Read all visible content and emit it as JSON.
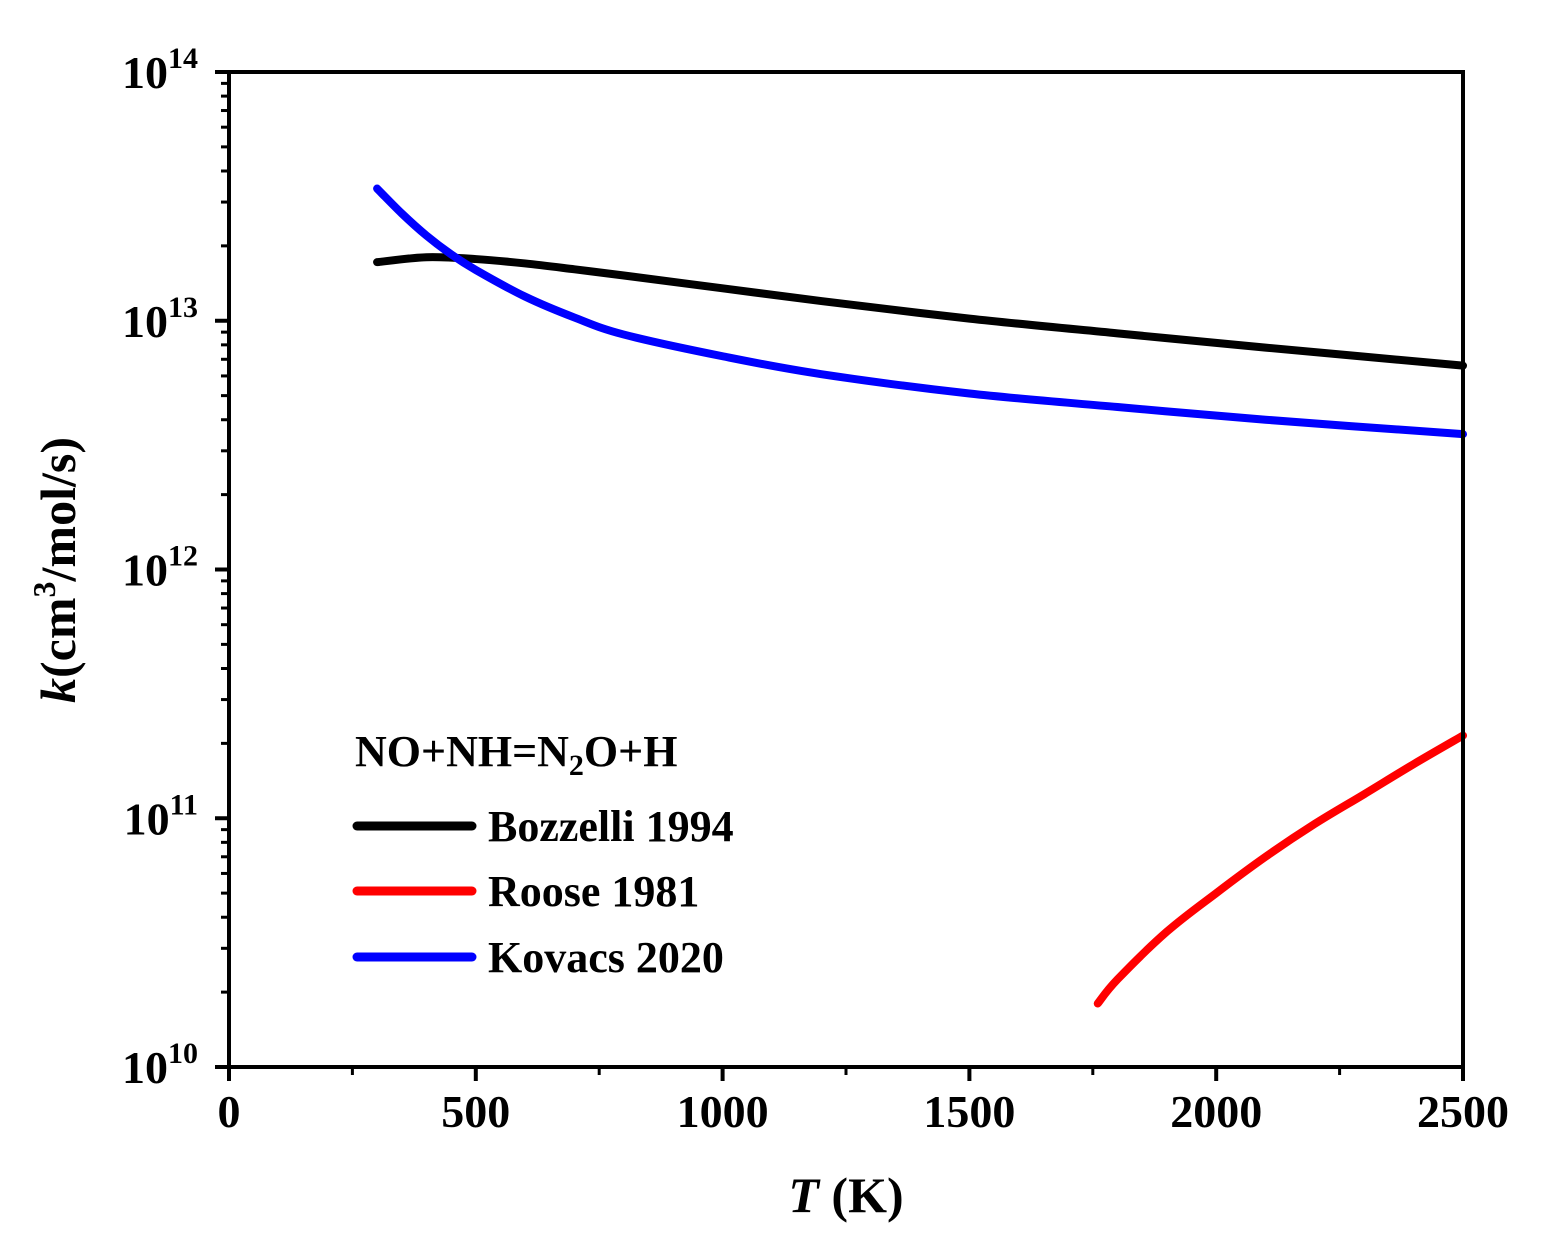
{
  "chart_data": {
    "type": "line",
    "title": "",
    "xlabel": {
      "italic": "T",
      "rest": " (K)"
    },
    "ylabel": {
      "italic": "k",
      "pre": "(cm",
      "sup": "3",
      "post": "/mol/s)"
    },
    "x_scale": "linear",
    "y_scale": "log",
    "xlim": [
      0,
      2500
    ],
    "ylim": [
      10000000000.0,
      100000000000000.0
    ],
    "x_ticks": [
      0,
      500,
      1000,
      1500,
      2000,
      2500
    ],
    "x_tick_labels": [
      "0",
      "500",
      "1000",
      "1500",
      "2000",
      "2500"
    ],
    "y_ticks": [
      {
        "value": 10000000000.0,
        "base": "10",
        "exp": "10"
      },
      {
        "value": 100000000000.0,
        "base": "10",
        "exp": "11"
      },
      {
        "value": 1000000000000.0,
        "base": "10",
        "exp": "12"
      },
      {
        "value": 10000000000000.0,
        "base": "10",
        "exp": "13"
      },
      {
        "value": 100000000000000.0,
        "base": "10",
        "exp": "14"
      }
    ],
    "legend": {
      "position": "bottom-left",
      "title": {
        "pre": "NO+NH=N",
        "sub": "2",
        "post": "O+H"
      }
    },
    "series": [
      {
        "name": "Bozzelli 1994",
        "color": "#000000",
        "x": [
          300,
          400,
          500,
          600,
          700,
          800,
          1000,
          1200,
          1500,
          1800,
          2100,
          2500
        ],
        "y": [
          17200000000000.0,
          18000000000000.0,
          17700000000000.0,
          17000000000000.0,
          16100000000000.0,
          15200000000000.0,
          13500000000000.0,
          12000000000000.0,
          10200000000000.0,
          8900000000000.0,
          7800000000000.0,
          6600000000000.0
        ]
      },
      {
        "name": "Roose 1981",
        "color": "#ff0000",
        "x": [
          1760,
          1800,
          1900,
          2000,
          2100,
          2200,
          2300,
          2400,
          2500
        ],
        "y": [
          18000000000.0,
          22500000000.0,
          35000000000.0,
          50000000000.0,
          70000000000.0,
          95000000000.0,
          125000000000.0,
          165000000000.0,
          215000000000.0
        ]
      },
      {
        "name": "Kovacs 2020",
        "color": "#0000ff",
        "x": [
          300,
          350,
          400,
          450,
          500,
          600,
          700,
          800,
          1000,
          1200,
          1500,
          1800,
          2100,
          2500
        ],
        "y": [
          34000000000000.0,
          27000000000000.0,
          22000000000000.0,
          18500000000000.0,
          16000000000000.0,
          12500000000000.0,
          10300000000000.0,
          8800000000000.0,
          7200000000000.0,
          6100000000000.0,
          5100000000000.0,
          4500000000000.0,
          4000000000000.0,
          3500000000000.0
        ]
      }
    ]
  }
}
